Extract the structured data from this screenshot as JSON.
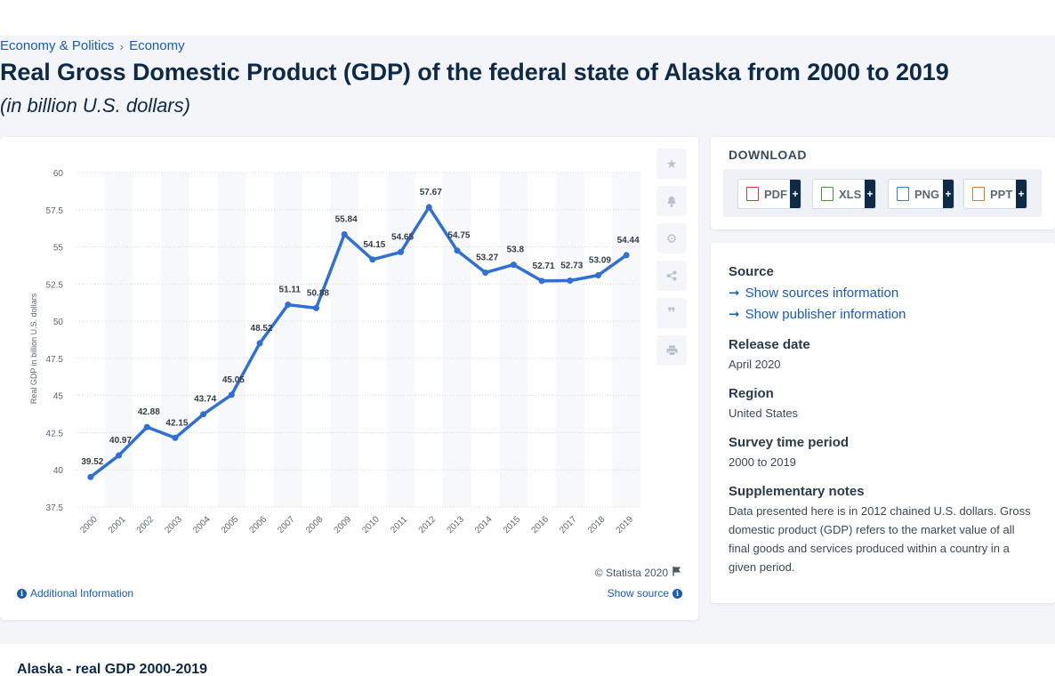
{
  "breadcrumb": {
    "item1": "Economy & Politics",
    "item2": "Economy"
  },
  "title": "Real Gross Domestic Product (GDP) of the federal state of Alaska from 2000 to 2019",
  "subtitle": "(in billion U.S. dollars)",
  "tools": [
    "star-icon",
    "bell-icon",
    "gear-icon",
    "share-icon",
    "quote-icon",
    "print-icon"
  ],
  "copyright": "© Statista 2020",
  "additional_info": "Additional Information",
  "show_source": "Show source",
  "download": {
    "title": "DOWNLOAD",
    "buttons": [
      {
        "label": "PDF",
        "color": "#d9383a"
      },
      {
        "label": "XLS",
        "color": "#3a9a3a"
      },
      {
        "label": "PNG",
        "color": "#3a7ad9"
      },
      {
        "label": "PPT",
        "color": "#e07a2a"
      }
    ],
    "plus": "+"
  },
  "meta": {
    "source_label": "Source",
    "show_sources": "Show sources information",
    "show_publisher": "Show publisher information",
    "release_label": "Release date",
    "release_value": "April 2020",
    "region_label": "Region",
    "region_value": "United States",
    "survey_label": "Survey time period",
    "survey_value": "2000 to 2019",
    "notes_label": "Supplementary notes",
    "notes_value": "Data presented here is in 2012 chained U.S. dollars. Gross domestic product (GDP) refers to the market value of all final goods and services produced within a country in a given period."
  },
  "bottom_title": "Alaska - real GDP 2000-2019",
  "chart_data": {
    "type": "line",
    "title": "",
    "xlabel": "",
    "ylabel": "Real GDP in billion U.S. dollars",
    "categories": [
      "2000",
      "2001",
      "2002",
      "2003",
      "2004",
      "2005",
      "2006",
      "2007",
      "2008",
      "2009",
      "2010",
      "2011",
      "2012",
      "2013",
      "2014",
      "2015",
      "2016",
      "2017",
      "2018",
      "2019"
    ],
    "values": [
      39.52,
      40.97,
      42.88,
      42.15,
      43.74,
      45.05,
      48.52,
      51.11,
      50.88,
      55.84,
      54.15,
      54.65,
      57.67,
      54.75,
      53.27,
      53.8,
      52.71,
      52.73,
      53.09,
      54.44
    ],
    "ylim": [
      37.5,
      60
    ],
    "yticks": [
      37.5,
      40,
      42.5,
      45,
      47.5,
      50,
      52.5,
      55,
      57.5,
      60
    ],
    "line_color": "#2f6fd6",
    "grid": true
  }
}
